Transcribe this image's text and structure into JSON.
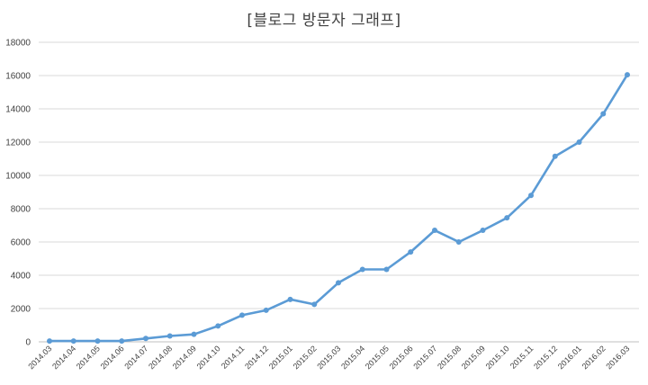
{
  "chart_data": {
    "type": "line",
    "title": "[블로그 방문자  그래프]",
    "xlabel": "",
    "ylabel": "",
    "ylim": [
      0,
      18000
    ],
    "yticks": [
      0,
      2000,
      4000,
      6000,
      8000,
      10000,
      12000,
      14000,
      16000,
      18000
    ],
    "grid": true,
    "legend": "none",
    "categories": [
      "2014.03",
      "2014.04",
      "2014.05",
      "2014.06",
      "2014.07",
      "2014.08",
      "2014.09",
      "2014.10",
      "2014.11",
      "2014.12",
      "2015.01",
      "2015.02",
      "2015.03",
      "2015.04",
      "2015.05",
      "2015.06",
      "2015.07",
      "2015.08",
      "2015.09",
      "2015.10",
      "2015.11",
      "2015.12",
      "2016.01",
      "2016.02",
      "2016.03"
    ],
    "series": [
      {
        "color": "#5b9bd5",
        "values": [
          50,
          50,
          50,
          50,
          200,
          350,
          450,
          950,
          1600,
          1900,
          2550,
          2250,
          3550,
          4350,
          4350,
          5400,
          6700,
          6000,
          6700,
          7450,
          8800,
          11150,
          12000,
          13700,
          16050
        ]
      }
    ]
  }
}
